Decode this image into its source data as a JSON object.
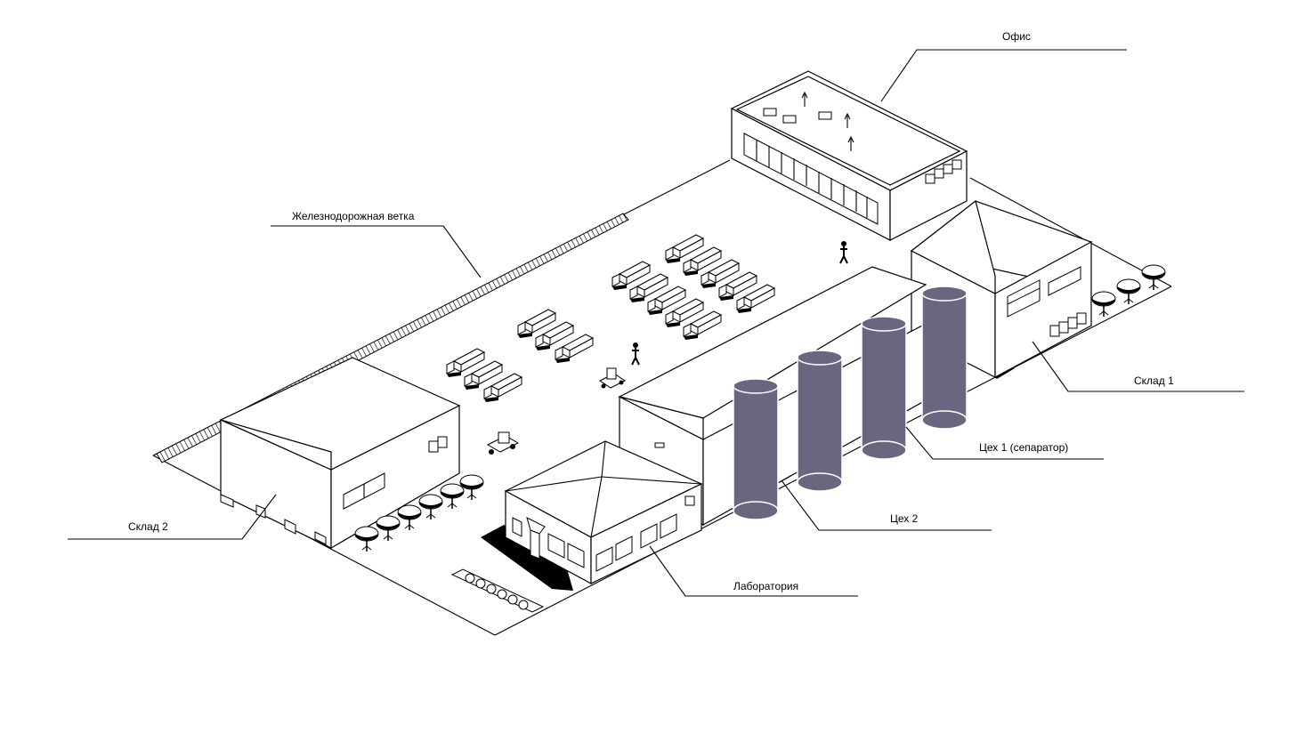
{
  "labels": {
    "office": "Офис",
    "railway": "Железнодорожная ветка",
    "warehouse1": "Склад 1",
    "workshop1": "Цех 1 (сепаратор)",
    "workshop2": "Цех 2",
    "warehouse2": "Склад 2",
    "laboratory": "Лаборатория"
  },
  "colors": {
    "tank": "#6b6680",
    "line": "#000000",
    "background": "#ffffff"
  }
}
